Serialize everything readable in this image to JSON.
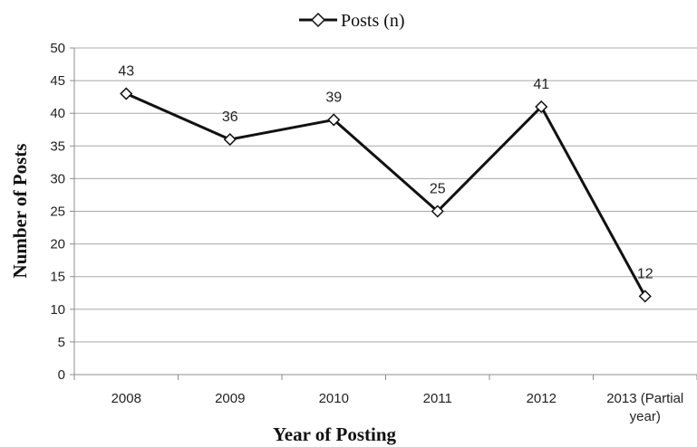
{
  "chart_data": {
    "type": "line",
    "categories": [
      "2008",
      "2009",
      "2010",
      "2011",
      "2012",
      [
        "2013 (Partial",
        "year)"
      ]
    ],
    "series": [
      {
        "name": "Posts (n)",
        "values": [
          43,
          36,
          39,
          25,
          41,
          12
        ],
        "marker": "diamond",
        "color": "#111111"
      }
    ],
    "data_labels": [
      "43",
      "36",
      "39",
      "25",
      "41",
      "12"
    ],
    "xlabel": "Year of Posting",
    "ylabel": "Number of Posts",
    "ylim": [
      0,
      50
    ],
    "yticks": [
      0,
      5,
      10,
      15,
      20,
      25,
      30,
      35,
      40,
      45,
      50
    ],
    "grid": "horizontal",
    "legend_position": "top"
  }
}
